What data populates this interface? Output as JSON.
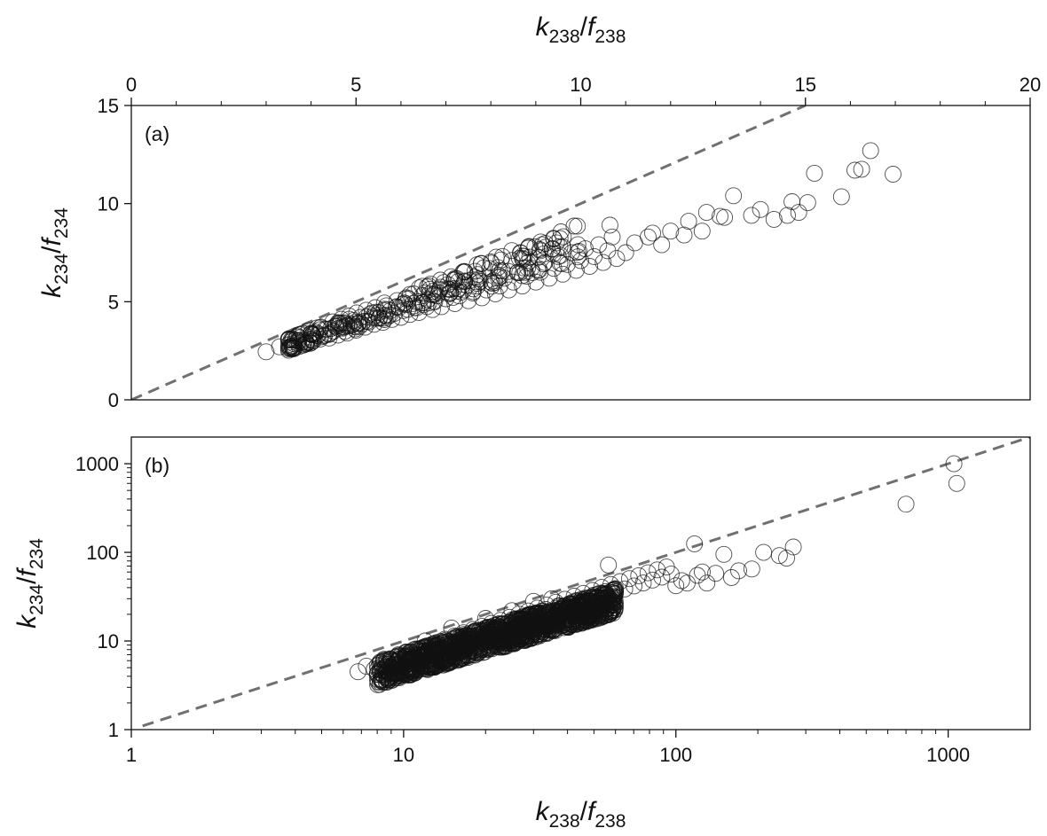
{
  "chart_data": [
    {
      "type": "scatter",
      "panel_label": "(a)",
      "x_scale": "linear",
      "y_scale": "linear",
      "xlim": [
        0,
        20
      ],
      "ylim": [
        0,
        15
      ],
      "x_ticks": [
        0,
        5,
        10,
        15,
        20
      ],
      "x_tick_labels": [
        "0",
        "5",
        "10",
        "15",
        "20"
      ],
      "x_axis_position": "top",
      "y_ticks": [
        0,
        5,
        10,
        15
      ],
      "y_tick_labels": [
        "0",
        "5",
        "10",
        "15"
      ],
      "xlabel": {
        "base1": "k",
        "sub1": "238",
        "slash": "/",
        "base2": "f",
        "sub2": "238"
      },
      "ylabel": {
        "base1": "k",
        "sub1": "234",
        "slash": "/",
        "base2": "f",
        "sub2": "234"
      },
      "reference_line": {
        "x": [
          0,
          15
        ],
        "y": [
          0,
          15
        ],
        "style": "dashed",
        "color": "#707070"
      },
      "marker": {
        "shape": "open-circle",
        "color": "#111111"
      },
      "series": [
        {
          "points": [
            [
              3.0,
              2.45
            ],
            [
              3.3,
              2.7
            ],
            [
              3.5,
              2.8
            ],
            [
              3.6,
              2.65
            ],
            [
              3.7,
              2.9
            ],
            [
              3.8,
              3.05
            ],
            [
              3.9,
              2.85
            ],
            [
              4.0,
              3.2
            ],
            [
              4.05,
              3.0
            ],
            [
              4.1,
              3.45
            ],
            [
              4.2,
              3.1
            ],
            [
              4.3,
              3.3
            ],
            [
              4.35,
              3.6
            ],
            [
              4.4,
              3.15
            ],
            [
              4.5,
              3.5
            ],
            [
              4.55,
              3.75
            ],
            [
              4.6,
              3.3
            ],
            [
              4.7,
              3.65
            ],
            [
              4.75,
              3.9
            ],
            [
              4.8,
              3.4
            ],
            [
              4.9,
              3.8
            ],
            [
              4.95,
              4.05
            ],
            [
              5.0,
              3.55
            ],
            [
              5.05,
              3.9
            ],
            [
              5.1,
              4.2
            ],
            [
              5.2,
              3.7
            ],
            [
              5.25,
              4.0
            ],
            [
              5.3,
              4.35
            ],
            [
              5.4,
              3.85
            ],
            [
              5.45,
              4.15
            ],
            [
              5.5,
              4.45
            ],
            [
              5.6,
              3.95
            ],
            [
              5.65,
              4.3
            ],
            [
              5.7,
              4.6
            ],
            [
              5.8,
              4.1
            ],
            [
              5.85,
              4.4
            ],
            [
              5.9,
              4.75
            ],
            [
              6.0,
              4.2
            ],
            [
              6.05,
              4.55
            ],
            [
              6.1,
              4.85
            ],
            [
              6.2,
              4.35
            ],
            [
              6.3,
              4.7
            ],
            [
              6.35,
              5.0
            ],
            [
              6.4,
              4.45
            ],
            [
              6.5,
              4.85
            ],
            [
              6.6,
              5.1
            ],
            [
              6.7,
              4.6
            ],
            [
              6.75,
              5.0
            ],
            [
              6.8,
              5.3
            ],
            [
              6.9,
              4.75
            ],
            [
              7.0,
              5.15
            ],
            [
              7.1,
              5.45
            ],
            [
              7.2,
              4.9
            ],
            [
              7.3,
              5.3
            ],
            [
              7.4,
              5.6
            ],
            [
              7.5,
              5.05
            ],
            [
              7.6,
              5.45
            ],
            [
              7.7,
              5.8
            ],
            [
              7.8,
              5.2
            ],
            [
              7.9,
              5.6
            ],
            [
              8.0,
              6.0
            ],
            [
              8.1,
              5.4
            ],
            [
              8.2,
              5.8
            ],
            [
              8.3,
              6.2
            ],
            [
              8.4,
              5.6
            ],
            [
              8.5,
              6.0
            ],
            [
              8.6,
              6.5
            ],
            [
              8.7,
              5.8
            ],
            [
              8.8,
              6.3
            ],
            [
              8.9,
              6.7
            ],
            [
              9.0,
              6.0
            ],
            [
              9.1,
              6.5
            ],
            [
              9.2,
              7.0
            ],
            [
              9.3,
              6.2
            ],
            [
              9.4,
              6.7
            ],
            [
              9.5,
              7.3
            ],
            [
              9.6,
              6.4
            ],
            [
              9.7,
              6.9
            ],
            [
              9.8,
              7.5
            ],
            [
              9.9,
              6.6
            ],
            [
              10.0,
              7.1
            ],
            [
              10.1,
              7.7
            ],
            [
              10.2,
              6.8
            ],
            [
              10.3,
              7.3
            ],
            [
              10.4,
              7.9
            ],
            [
              10.5,
              7.0
            ],
            [
              10.6,
              7.6
            ],
            [
              10.7,
              8.3
            ],
            [
              10.8,
              7.2
            ],
            [
              10.65,
              8.9
            ],
            [
              9.4,
              8.2
            ],
            [
              9.6,
              7.8
            ],
            [
              11.0,
              7.5
            ],
            [
              11.2,
              8.0
            ],
            [
              11.5,
              8.3
            ],
            [
              11.8,
              7.9
            ],
            [
              12.0,
              8.6
            ],
            [
              12.3,
              8.4
            ],
            [
              12.4,
              9.1
            ],
            [
              12.7,
              8.6
            ],
            [
              12.8,
              9.55
            ],
            [
              13.2,
              9.3
            ],
            [
              13.4,
              10.4
            ],
            [
              13.8,
              9.4
            ],
            [
              14.0,
              9.7
            ],
            [
              14.3,
              9.2
            ],
            [
              14.6,
              9.4
            ],
            [
              14.7,
              10.1
            ],
            [
              14.85,
              9.55
            ],
            [
              15.05,
              10.05
            ],
            [
              15.2,
              11.55
            ],
            [
              15.8,
              10.35
            ],
            [
              16.1,
              11.7
            ],
            [
              16.25,
              11.75
            ],
            [
              16.45,
              12.7
            ],
            [
              16.95,
              11.5
            ],
            [
              13.1,
              9.35
            ],
            [
              11.6,
              8.5
            ],
            [
              8.7,
              7.2
            ],
            [
              9.1,
              7.6
            ]
          ]
        }
      ]
    },
    {
      "type": "scatter",
      "panel_label": "(b)",
      "x_scale": "log",
      "y_scale": "log",
      "xlim": [
        1,
        2000
      ],
      "ylim": [
        1,
        2000
      ],
      "x_ticks": [
        1,
        10,
        100,
        1000
      ],
      "x_tick_labels": [
        "1",
        "10",
        "100",
        "1000"
      ],
      "x_axis_position": "bottom",
      "y_ticks": [
        1,
        10,
        100,
        1000
      ],
      "y_tick_labels": [
        "1",
        "10",
        "100",
        "1000"
      ],
      "xlabel": {
        "base1": "k",
        "sub1": "238",
        "slash": "/",
        "base2": "f",
        "sub2": "238"
      },
      "ylabel": {
        "base1": "k",
        "sub1": "234",
        "slash": "/",
        "base2": "f",
        "sub2": "234"
      },
      "reference_line": {
        "x": [
          1.1,
          2000
        ],
        "y": [
          1.1,
          2000
        ],
        "style": "dashed",
        "color": "#707070"
      },
      "marker": {
        "shape": "open-circle",
        "color": "#111111"
      },
      "series": [
        {
          "points": [
            [
              6.8,
              4.5
            ],
            [
              7.3,
              5.2
            ],
            [
              7.8,
              4.8
            ],
            [
              8.2,
              5.8
            ],
            [
              8.6,
              5.1
            ],
            [
              9.0,
              6.2
            ],
            [
              9.3,
              5.4
            ],
            [
              9.7,
              6.8
            ],
            [
              10.1,
              5.9
            ],
            [
              10.5,
              7.4
            ],
            [
              10.9,
              6.3
            ],
            [
              11.3,
              8.1
            ],
            [
              11.8,
              6.9
            ],
            [
              12.2,
              8.8
            ],
            [
              12.7,
              7.5
            ],
            [
              13.2,
              9.6
            ],
            [
              13.7,
              8.1
            ],
            [
              14.2,
              10.5
            ],
            [
              14.8,
              8.8
            ],
            [
              15.4,
              11.4
            ],
            [
              16.0,
              9.5
            ],
            [
              16.6,
              12.4
            ],
            [
              17.3,
              10.3
            ],
            [
              18.0,
              13.5
            ],
            [
              18.7,
              11.2
            ],
            [
              19.4,
              14.6
            ],
            [
              20.2,
              12.1
            ],
            [
              21.0,
              15.8
            ],
            [
              21.8,
              13.1
            ],
            [
              22.7,
              17.1
            ],
            [
              23.6,
              14.2
            ],
            [
              24.5,
              18.5
            ],
            [
              25.5,
              15.3
            ],
            [
              26.5,
              20.1
            ],
            [
              27.6,
              16.6
            ],
            [
              28.7,
              21.8
            ],
            [
              29.8,
              17.9
            ],
            [
              31.0,
              23.5
            ],
            [
              32.2,
              19.4
            ],
            [
              33.5,
              25.4
            ],
            [
              34.8,
              21.0
            ],
            [
              36.2,
              27.4
            ],
            [
              37.6,
              22.6
            ],
            [
              39.1,
              29.6
            ],
            [
              40.7,
              24.4
            ],
            [
              42.3,
              32.0
            ],
            [
              44.0,
              26.4
            ],
            [
              45.7,
              34.5
            ],
            [
              47.5,
              28.5
            ],
            [
              49.4,
              37.2
            ],
            [
              51.4,
              30.8
            ],
            [
              53.4,
              40.2
            ],
            [
              55.5,
              33.2
            ],
            [
              57.7,
              43.4
            ],
            [
              56.5,
              72
            ],
            [
              60.0,
              35.9
            ],
            [
              62.4,
              46.8
            ],
            [
              64.9,
              38.7
            ],
            [
              67.5,
              50.5
            ],
            [
              70.2,
              41.8
            ],
            [
              73.0,
              54.5
            ],
            [
              75.9,
              45.1
            ],
            [
              79.0,
              58.8
            ],
            [
              82.1,
              48.7
            ],
            [
              85.4,
              63.4
            ],
            [
              88.8,
              52.6
            ],
            [
              92.4,
              68.4
            ],
            [
              96.1,
              56.8
            ],
            [
              100,
              42
            ],
            [
              105,
              48
            ],
            [
              110,
              45
            ],
            [
              117,
              125
            ],
            [
              120,
              55
            ],
            [
              125,
              60
            ],
            [
              130,
              45
            ],
            [
              140,
              58
            ],
            [
              150,
              95
            ],
            [
              160,
              52
            ],
            [
              170,
              62
            ],
            [
              190,
              65
            ],
            [
              210,
              100
            ],
            [
              240,
              92
            ],
            [
              255,
              86
            ],
            [
              270,
              115
            ],
            [
              700,
              350
            ],
            [
              1050,
              1000
            ],
            [
              1075,
              600
            ],
            [
              15,
              6
            ],
            [
              18,
              7
            ],
            [
              20,
              8
            ],
            [
              22,
              9
            ],
            [
              25,
              10
            ],
            [
              28,
              11
            ],
            [
              30,
              12
            ],
            [
              12,
              10
            ],
            [
              15,
              14
            ],
            [
              20,
              18
            ],
            [
              25,
              22
            ],
            [
              30,
              28
            ],
            [
              35,
              30
            ],
            [
              40,
              20
            ],
            [
              45,
              25
            ],
            [
              50,
              22
            ]
          ],
          "dense_cloud": {
            "x_range": [
              8,
              60
            ],
            "density": "high"
          }
        }
      ]
    }
  ]
}
